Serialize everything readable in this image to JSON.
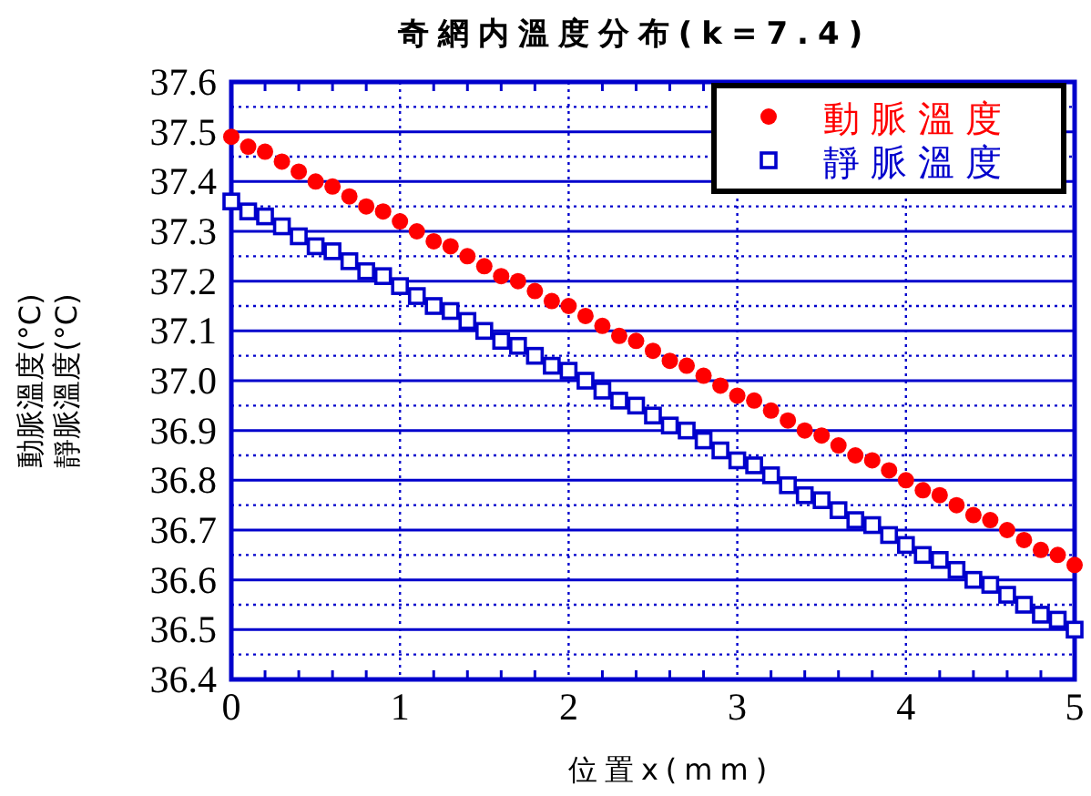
{
  "chart_data": {
    "type": "scatter",
    "title": "奇網内溫度分布(k=7.4)",
    "xlabel": "位置x(mm)",
    "ylabel": "動脈溫度(°C)\n靜脈溫度(°C)",
    "x": [
      0,
      0.1,
      0.2,
      0.3,
      0.4,
      0.5,
      0.6,
      0.7,
      0.8,
      0.9,
      1,
      1.1,
      1.2,
      1.3,
      1.4,
      1.5,
      1.6,
      1.7,
      1.8,
      1.9,
      2,
      2.1,
      2.2,
      2.3,
      2.4,
      2.5,
      2.6,
      2.7,
      2.8,
      2.9,
      3,
      3.1,
      3.2,
      3.3,
      3.4,
      3.5,
      3.6,
      3.7,
      3.8,
      3.9,
      4,
      4.1,
      4.2,
      4.3,
      4.4,
      4.5,
      4.6,
      4.7,
      4.8,
      4.9,
      5
    ],
    "series": [
      {
        "name": "動脈溫度",
        "color": "#ff0000",
        "marker": "circle",
        "values": [
          37.49,
          37.47,
          37.46,
          37.44,
          37.42,
          37.4,
          37.39,
          37.37,
          37.35,
          37.34,
          37.32,
          37.3,
          37.28,
          37.27,
          37.25,
          37.23,
          37.21,
          37.2,
          37.18,
          37.16,
          37.15,
          37.13,
          37.11,
          37.09,
          37.08,
          37.06,
          37.04,
          37.03,
          37.01,
          36.99,
          36.97,
          36.96,
          36.94,
          36.92,
          36.9,
          36.89,
          36.87,
          36.85,
          36.84,
          36.82,
          36.8,
          36.78,
          36.77,
          36.75,
          36.73,
          36.72,
          36.7,
          36.68,
          36.66,
          36.65,
          36.63
        ]
      },
      {
        "name": "靜脈溫度",
        "color": "#0000cc",
        "marker": "square",
        "values": [
          37.36,
          37.34,
          37.33,
          37.31,
          37.29,
          37.27,
          37.26,
          37.24,
          37.22,
          37.21,
          37.19,
          37.17,
          37.15,
          37.14,
          37.12,
          37.1,
          37.08,
          37.07,
          37.05,
          37.03,
          37.02,
          37.0,
          36.98,
          36.96,
          36.95,
          36.93,
          36.91,
          36.9,
          36.88,
          36.86,
          36.84,
          36.83,
          36.81,
          36.79,
          36.77,
          36.76,
          36.74,
          36.72,
          36.71,
          36.69,
          36.67,
          36.65,
          36.64,
          36.62,
          36.6,
          36.59,
          36.57,
          36.55,
          36.53,
          36.52,
          36.5
        ]
      }
    ],
    "xlim": [
      0,
      5
    ],
    "xticks": [
      0,
      1,
      2,
      3,
      4,
      5
    ],
    "ylim": [
      36.4,
      37.6
    ],
    "yticks": [
      36.4,
      36.5,
      36.6,
      36.7,
      36.8,
      36.9,
      {
        "value": 37,
        "label": "37.0"
      },
      37.1,
      37.2,
      37.3,
      37.4,
      37.5,
      37.6
    ],
    "grid": true,
    "legend": "top right"
  }
}
